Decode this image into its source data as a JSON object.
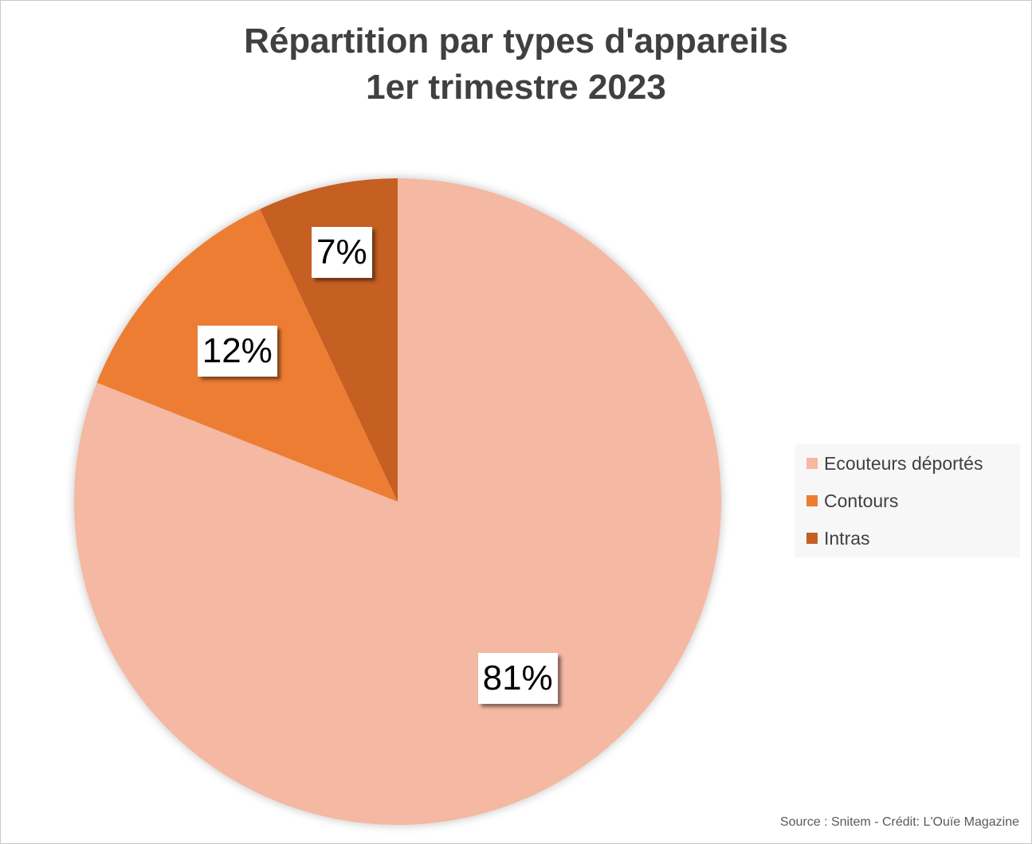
{
  "chart_data": {
    "type": "pie",
    "title_line1": "Répartition par types d'appareils",
    "title_line2": "1er trimestre 2023",
    "slices": [
      {
        "label": "Ecouteurs déportés",
        "value": 81,
        "display": "81%",
        "color": "#f4b8a3"
      },
      {
        "label": "Contours",
        "value": 12,
        "display": "12%",
        "color": "#ed7d31"
      },
      {
        "label": "Intras",
        "value": 7,
        "display": "7%",
        "color": "#c55f24"
      }
    ],
    "start": "12 o'clock",
    "direction": "clockwise",
    "legend_position": "right"
  },
  "footer": {
    "source": "Source : Snitem - Crédit: L'Ouïe Magazine"
  }
}
